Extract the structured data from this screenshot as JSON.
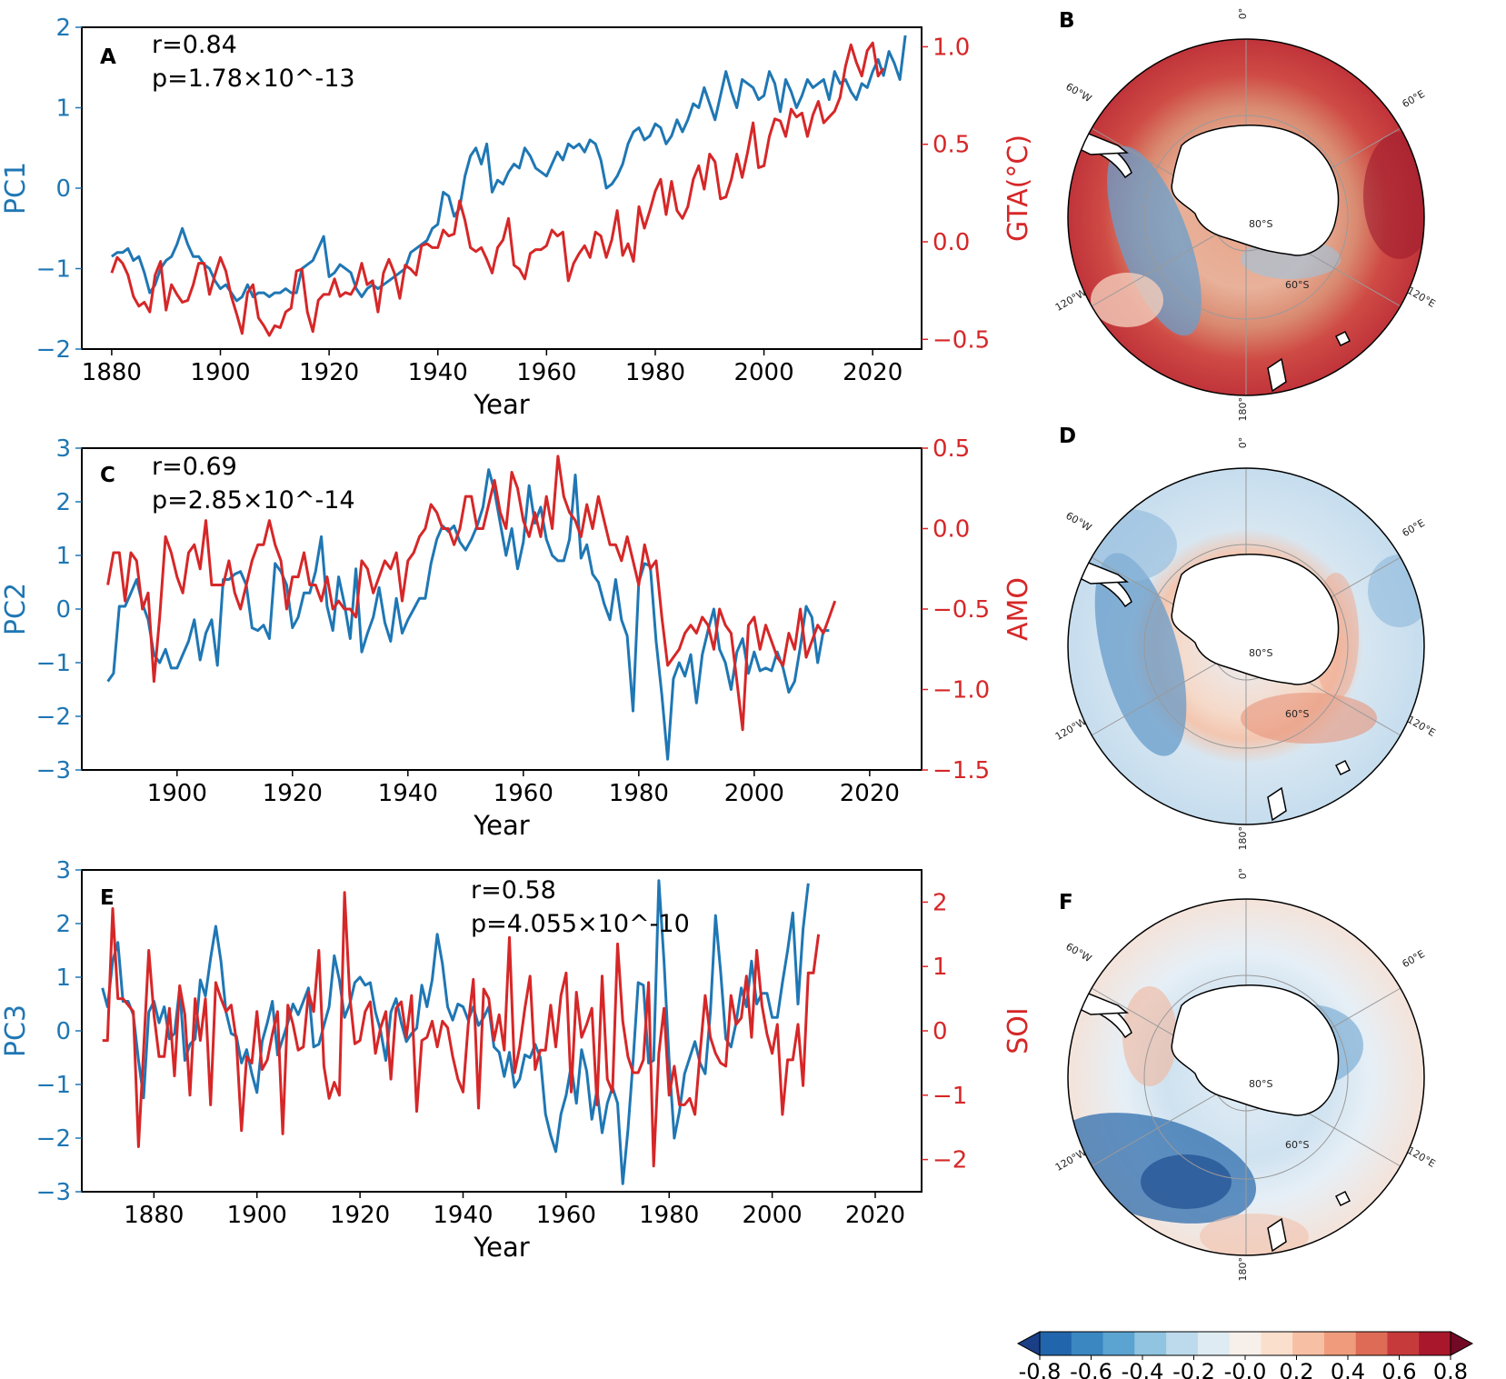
{
  "colors": {
    "blue": "#1f77b4",
    "red": "#d62728"
  },
  "xlabel": "Year",
  "panels": [
    {
      "letter": "A",
      "left_label": "PC1",
      "right_label": "GTA(°C)",
      "stat_r": "r=0.84",
      "stat_p": "p=1.78×10^-13",
      "x_ticks": [
        "1880",
        "1900",
        "1920",
        "1940",
        "1960",
        "1980",
        "2000",
        "2020"
      ],
      "left_ticks": [
        "2",
        "1",
        "0",
        "−1",
        "−2"
      ],
      "right_ticks": [
        "1.0",
        "0.5",
        "0.0",
        "−0.5"
      ]
    },
    {
      "letter": "C",
      "left_label": "PC2",
      "right_label": "AMO",
      "stat_r": "r=0.69",
      "stat_p": "p=2.85×10^-14",
      "x_ticks": [
        "1900",
        "1920",
        "1940",
        "1960",
        "1980",
        "2000",
        "2020"
      ],
      "left_ticks": [
        "3",
        "2",
        "1",
        "0",
        "−1",
        "−2",
        "−3"
      ],
      "right_ticks": [
        "0.5",
        "0.0",
        "−0.5",
        "−1.0",
        "−1.5"
      ]
    },
    {
      "letter": "E",
      "left_label": "PC3",
      "right_label": "SOI",
      "stat_r": "r=0.58",
      "stat_p": "p=4.055×10^-10",
      "x_ticks": [
        "1880",
        "1900",
        "1920",
        "1940",
        "1960",
        "1980",
        "2000",
        "2020"
      ],
      "left_ticks": [
        "3",
        "2",
        "1",
        "0",
        "−1",
        "−2",
        "−3"
      ],
      "right_ticks": [
        "2",
        "1",
        "0",
        "−1",
        "−2"
      ]
    }
  ],
  "maps": [
    {
      "letter": "B",
      "pattern": "warming (mostly positive, negative along Antarctic coast near 60°W–120°W)"
    },
    {
      "letter": "D",
      "pattern": "weak negative with positive ring around Antarctica"
    },
    {
      "letter": "F",
      "pattern": "weak, strong negative center near 120°W–150°W"
    }
  ],
  "map_labels": {
    "lon0": "0°",
    "lon60w": "60°W",
    "lon60e": "60°E",
    "lon120w": "120°W",
    "lon120e": "120°E",
    "lon180": "180°",
    "lat80": "80°S",
    "lat60": "60°S"
  },
  "colorbar": {
    "ticks": [
      "-0.8",
      "-0.6",
      "-0.4",
      "-0.2",
      "-0.0",
      "0.2",
      "0.4",
      "0.6",
      "0.8"
    ],
    "colors": [
      "#1a3f87",
      "#2166ac",
      "#3a87c2",
      "#5ba3d0",
      "#90c4e0",
      "#bcdaeb",
      "#deebf3",
      "#f7efea",
      "#fbdfcd",
      "#f7c0a4",
      "#f09c7c",
      "#de6b55",
      "#c63a3b",
      "#a8172b",
      "#730a25"
    ]
  },
  "chart_data": [
    {
      "type": "line",
      "panel": "A",
      "title": "",
      "xlabel": "Year",
      "ylabel_left": "PC1",
      "ylabel_right": "GTA(°C)",
      "xlim": [
        1874.5,
        2029
      ],
      "ylim_left": [
        -2,
        2
      ],
      "ylim_right": [
        -0.55,
        1.1
      ],
      "series": [
        {
          "name": "PC1",
          "axis": "left",
          "color": "#1f77b4",
          "x_start": 1880,
          "step": 1,
          "values": [
            -0.85,
            -0.8,
            -0.8,
            -0.75,
            -0.9,
            -0.85,
            -1.05,
            -1.3,
            -1.2,
            -1.0,
            -0.9,
            -0.85,
            -0.7,
            -0.5,
            -0.7,
            -0.85,
            -0.85,
            -0.95,
            -1.0,
            -1.15,
            -1.25,
            -1.2,
            -1.3,
            -1.4,
            -1.35,
            -1.2,
            -1.35,
            -1.3,
            -1.3,
            -1.35,
            -1.3,
            -1.3,
            -1.25,
            -1.3,
            -1.3,
            -1.0,
            -0.95,
            -0.9,
            -0.75,
            -0.6,
            -1.1,
            -1.05,
            -0.95,
            -1.0,
            -1.05,
            -1.25,
            -1.35,
            -1.25,
            -1.2,
            -1.25,
            -1.2,
            -1.15,
            -1.1,
            -1.05,
            -1.0,
            -0.8,
            -0.75,
            -0.7,
            -0.65,
            -0.5,
            -0.45,
            -0.05,
            -0.1,
            -0.35,
            -0.25,
            0.15,
            0.4,
            0.5,
            0.3,
            0.55,
            -0.05,
            0.1,
            0.05,
            0.2,
            0.3,
            0.25,
            0.5,
            0.4,
            0.25,
            0.2,
            0.15,
            0.3,
            0.45,
            0.35,
            0.55,
            0.5,
            0.55,
            0.45,
            0.6,
            0.55,
            0.35,
            0.0,
            0.05,
            0.15,
            0.3,
            0.55,
            0.7,
            0.75,
            0.6,
            0.65,
            0.8,
            0.75,
            0.55,
            0.65,
            0.85,
            0.7,
            0.85,
            1.05,
            1.0,
            1.25,
            1.05,
            0.85,
            1.15,
            1.45,
            1.2,
            1.0,
            1.35,
            1.3,
            1.25,
            1.1,
            1.15,
            1.45,
            1.3,
            0.95,
            1.35,
            1.2,
            1.0,
            1.15,
            1.35,
            1.25,
            1.3,
            1.35,
            1.1,
            1.45,
            1.3,
            1.35,
            1.2,
            1.1,
            1.3,
            1.25,
            1.45,
            1.6,
            1.4,
            1.7,
            1.55,
            1.35,
            1.9
          ]
        },
        {
          "name": "GTA(°C)",
          "axis": "right",
          "color": "#d62728",
          "x_start": 1880,
          "step": 1,
          "values": [
            -0.16,
            -0.08,
            -0.11,
            -0.17,
            -0.28,
            -0.33,
            -0.31,
            -0.36,
            -0.17,
            -0.1,
            -0.35,
            -0.22,
            -0.27,
            -0.31,
            -0.3,
            -0.22,
            -0.11,
            -0.11,
            -0.27,
            -0.17,
            -0.08,
            -0.15,
            -0.28,
            -0.37,
            -0.47,
            -0.26,
            -0.22,
            -0.39,
            -0.43,
            -0.48,
            -0.43,
            -0.44,
            -0.36,
            -0.34,
            -0.15,
            -0.14,
            -0.36,
            -0.46,
            -0.3,
            -0.27,
            -0.27,
            -0.19,
            -0.28,
            -0.26,
            -0.27,
            -0.22,
            -0.11,
            -0.22,
            -0.2,
            -0.36,
            -0.16,
            -0.09,
            -0.16,
            -0.29,
            -0.12,
            -0.14,
            -0.17,
            -0.02,
            -0.01,
            -0.03,
            -0.03,
            0.06,
            0.03,
            0.04,
            0.21,
            0.11,
            -0.03,
            -0.05,
            -0.03,
            -0.09,
            -0.16,
            -0.03,
            0.01,
            0.12,
            -0.12,
            -0.14,
            -0.19,
            -0.06,
            -0.04,
            -0.04,
            -0.02,
            0.06,
            0.03,
            0.05,
            -0.2,
            -0.11,
            -0.06,
            -0.02,
            -0.08,
            0.05,
            0.03,
            -0.08,
            0.01,
            0.16,
            -0.07,
            -0.01,
            -0.1,
            0.18,
            0.07,
            0.16,
            0.26,
            0.32,
            0.14,
            0.31,
            0.16,
            0.12,
            0.18,
            0.32,
            0.39,
            0.27,
            0.45,
            0.41,
            0.22,
            0.23,
            0.32,
            0.45,
            0.33,
            0.46,
            0.61,
            0.38,
            0.39,
            0.54,
            0.63,
            0.62,
            0.54,
            0.68,
            0.64,
            0.66,
            0.54,
            0.65,
            0.72,
            0.61,
            0.64,
            0.67,
            0.74,
            0.9,
            1.01,
            0.92,
            0.85,
            0.98,
            1.02,
            0.85,
            0.89
          ]
        }
      ]
    },
    {
      "type": "line",
      "panel": "C",
      "title": "",
      "xlabel": "Year",
      "ylabel_left": "PC2",
      "ylabel_right": "AMO",
      "xlim": [
        1883.5,
        2029
      ],
      "ylim_left": [
        -3,
        3
      ],
      "ylim_right": [
        -1.5,
        0.5
      ],
      "series": [
        {
          "name": "PC2",
          "axis": "left",
          "color": "#1f77b4",
          "x_start": 1888,
          "step": 1,
          "values": [
            -1.35,
            -1.2,
            0.05,
            0.05,
            0.3,
            0.55,
            0.1,
            -0.2,
            -0.85,
            -1.0,
            -0.75,
            -1.1,
            -1.1,
            -0.85,
            -0.6,
            -0.2,
            -0.95,
            -0.45,
            -0.2,
            -1.05,
            0.55,
            0.55,
            0.65,
            0.7,
            0.45,
            -0.35,
            -0.4,
            -0.3,
            -0.55,
            0.85,
            0.7,
            0.45,
            -0.35,
            -0.15,
            0.3,
            0.3,
            0.7,
            1.35,
            0.05,
            -0.4,
            0.6,
            0.1,
            -0.55,
            0.75,
            -0.8,
            -0.45,
            -0.15,
            0.4,
            -0.25,
            -0.6,
            0.2,
            -0.45,
            -0.2,
            0.0,
            0.2,
            0.2,
            0.85,
            1.3,
            1.55,
            1.45,
            1.55,
            1.25,
            1.1,
            1.3,
            1.55,
            1.9,
            2.6,
            2.2,
            1.6,
            1.0,
            1.5,
            0.75,
            1.25,
            2.3,
            1.6,
            1.9,
            1.3,
            1.0,
            0.9,
            0.9,
            1.3,
            2.5,
            0.95,
            1.2,
            0.65,
            0.5,
            0.1,
            -0.2,
            0.55,
            -0.2,
            -0.5,
            -1.9,
            0.5,
            0.85,
            0.8,
            -0.6,
            -1.6,
            -2.8,
            -1.3,
            -1.0,
            -1.25,
            -0.85,
            -1.75,
            -0.85,
            -0.4,
            0.0,
            -0.75,
            -1.0,
            -1.5,
            -0.8,
            -0.55,
            -1.2,
            -0.8,
            -1.15,
            -1.1,
            -1.15,
            -0.8,
            -1.1,
            -1.55,
            -1.35,
            -0.7,
            0.05,
            -0.15,
            -1.0,
            -0.4,
            -0.4
          ]
        },
        {
          "name": "AMO",
          "axis": "right",
          "color": "#d62728",
          "x_start": 1888,
          "step": 1,
          "values": [
            -0.35,
            -0.15,
            -0.15,
            -0.45,
            -0.15,
            -0.2,
            -0.5,
            -0.4,
            -0.95,
            -0.55,
            -0.05,
            -0.15,
            -0.3,
            -0.4,
            -0.15,
            -0.1,
            -0.25,
            0.05,
            -0.35,
            -0.35,
            -0.35,
            -0.2,
            -0.4,
            -0.5,
            -0.35,
            -0.2,
            -0.1,
            -0.1,
            0.05,
            -0.1,
            -0.2,
            -0.5,
            -0.3,
            -0.3,
            -0.15,
            -0.35,
            -0.35,
            -0.45,
            -0.3,
            -0.5,
            -0.45,
            -0.5,
            -0.5,
            -0.55,
            -0.2,
            -0.25,
            -0.4,
            -0.3,
            -0.2,
            -0.25,
            -0.15,
            -0.45,
            -0.2,
            -0.15,
            -0.05,
            0.0,
            0.15,
            0.1,
            0.0,
            0.0,
            -0.1,
            0.0,
            0.2,
            0.2,
            0.0,
            0.0,
            0.15,
            0.3,
            0.1,
            0.0,
            0.35,
            0.25,
            0.05,
            -0.05,
            0.1,
            -0.05,
            0.2,
            0.0,
            0.45,
            0.2,
            0.1,
            0.05,
            -0.05,
            0.15,
            0.0,
            0.2,
            0.05,
            -0.1,
            -0.1,
            -0.2,
            -0.05,
            -0.2,
            -0.35,
            -0.1,
            -0.25,
            -0.2,
            -0.55,
            -0.85,
            -0.8,
            -0.75,
            -0.65,
            -0.6,
            -0.65,
            -0.55,
            -0.6,
            -0.75,
            -0.5,
            -0.6,
            -0.65,
            -0.95,
            -1.25,
            -0.6,
            -0.55,
            -0.75,
            -0.6,
            -0.7,
            -0.8,
            -0.85,
            -0.65,
            -0.75,
            -0.5,
            -0.8,
            -0.7,
            -0.6,
            -0.65,
            -0.55,
            -0.45
          ]
        }
      ]
    },
    {
      "type": "line",
      "panel": "E",
      "title": "",
      "xlabel": "Year",
      "ylabel_left": "PC3",
      "ylabel_right": "SOI",
      "xlim": [
        1866,
        2029
      ],
      "ylim_left": [
        -3,
        3
      ],
      "ylim_right": [
        -2.5,
        2.5
      ],
      "series": [
        {
          "name": "PC3",
          "axis": "left",
          "color": "#1f77b4",
          "x_start": 1870,
          "step": 1,
          "values": [
            0.8,
            0.45,
            1.3,
            1.65,
            0.55,
            0.55,
            0.3,
            -0.55,
            -1.25,
            0.35,
            0.55,
            0.15,
            0.45,
            -0.15,
            -0.05,
            0.8,
            -0.55,
            -0.25,
            -0.15,
            0.95,
            0.65,
            1.35,
            1.95,
            1.3,
            0.35,
            -0.05,
            -0.1,
            -0.6,
            -0.35,
            -0.8,
            -1.15,
            -0.2,
            0.15,
            0.55,
            -0.45,
            -0.15,
            0.15,
            0.5,
            0.3,
            0.55,
            0.8,
            -0.3,
            -0.25,
            0.1,
            0.45,
            1.4,
            0.95,
            0.25,
            0.5,
            0.9,
            1.0,
            0.85,
            0.9,
            0.35,
            0.0,
            -0.55,
            0.35,
            0.6,
            0.15,
            -0.2,
            -0.05,
            0.05,
            0.85,
            0.45,
            0.95,
            1.8,
            1.25,
            0.45,
            0.2,
            0.5,
            0.45,
            0.2,
            0.45,
            0.1,
            0.25,
            0.45,
            -0.3,
            -0.4,
            -0.85,
            -0.4,
            -1.05,
            -0.9,
            -0.45,
            -0.5,
            -0.25,
            -0.5,
            -1.55,
            -1.95,
            -2.25,
            -1.55,
            -1.2,
            -0.65,
            -1.35,
            -0.35,
            -0.75,
            -1.65,
            -1.1,
            -1.9,
            -1.35,
            -1.05,
            -1.35,
            -2.85,
            -1.85,
            -0.55,
            0.9,
            0.85,
            -0.6,
            -0.55,
            2.8,
            1.3,
            -0.55,
            -2.0,
            -1.5,
            -0.8,
            -0.5,
            -0.2,
            -0.6,
            -0.8,
            0.35,
            2.15,
            1.1,
            -0.15,
            -0.3,
            0.15,
            0.8,
            0.45,
            1.3,
            0.5,
            0.7,
            0.7,
            0.25,
            0.25,
            0.9,
            1.5,
            2.2,
            0.5,
            1.9,
            2.75
          ]
        },
        {
          "name": "SOI",
          "axis": "right",
          "color": "#d62728",
          "x_start": 1870,
          "step": 1,
          "values": [
            -0.15,
            -0.15,
            1.9,
            0.5,
            0.5,
            0.4,
            0.3,
            -1.8,
            -0.3,
            1.25,
            0.25,
            -0.4,
            -0.4,
            0.35,
            -0.7,
            0.7,
            0.25,
            -1.0,
            0.5,
            -0.15,
            0.5,
            -1.15,
            0.75,
            0.5,
            0.3,
            0.4,
            -0.15,
            -1.55,
            -0.4,
            -0.5,
            0.3,
            -0.6,
            -0.45,
            -0.05,
            0.3,
            -1.6,
            0.4,
            0.1,
            -0.3,
            -0.25,
            0.6,
            0.3,
            1.25,
            -0.55,
            -1.05,
            -0.8,
            -1.0,
            2.15,
            0.55,
            -0.2,
            -0.15,
            0.3,
            0.45,
            -0.35,
            0.05,
            0.3,
            -0.75,
            0.35,
            0.45,
            -0.1,
            0.55,
            -1.25,
            -0.15,
            -0.1,
            0.15,
            -0.25,
            0.15,
            0.05,
            -0.4,
            -0.75,
            -0.95,
            0.1,
            0.8,
            -1.2,
            0.65,
            0.5,
            -0.15,
            0.25,
            -0.3,
            1.45,
            -0.65,
            -0.25,
            0.35,
            0.85,
            -0.6,
            -0.3,
            -0.3,
            0.4,
            -0.25,
            0.55,
            0.9,
            -0.95,
            0.6,
            -0.1,
            0.1,
            0.35,
            -1.15,
            0.85,
            -0.75,
            -0.95,
            1.35,
            0.15,
            -0.4,
            -0.65,
            -0.65,
            -0.45,
            0.75,
            -2.1,
            -0.35,
            0.35,
            -1.0,
            -0.55,
            -1.15,
            -1.15,
            -1.05,
            -1.3,
            -0.35,
            0.55,
            -0.1,
            -0.35,
            -0.5,
            -0.55,
            0.55,
            0.1,
            0.2,
            0.85,
            -0.1,
            1.25,
            0.4,
            -0.05,
            -0.35,
            0.1,
            -1.3,
            -0.45,
            -0.45,
            0.1,
            -0.85,
            0.9,
            0.9,
            1.5
          ]
        }
      ]
    }
  ]
}
